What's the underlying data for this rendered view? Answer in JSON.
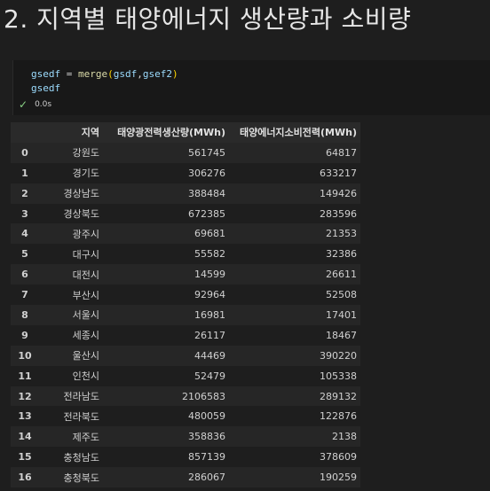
{
  "heading": "2. 지역별 태양에너지 생산량과 소비량",
  "cell": {
    "code": {
      "line1": {
        "var": "gsedf",
        "op": " = ",
        "fn": "merge",
        "lparen": "(",
        "arg1": "gsdf",
        "comma": ",",
        "arg2": "gsef2",
        "rparen": ")"
      },
      "line2": "gsedf"
    },
    "exec_time": "0.0s"
  },
  "table": {
    "columns": [
      "",
      "지역",
      "태양광전력생산량(MWh)",
      "태양에너지소비전력(MWh)"
    ],
    "rows": [
      [
        "0",
        "강원도",
        "561745",
        "64817"
      ],
      [
        "1",
        "경기도",
        "306276",
        "633217"
      ],
      [
        "2",
        "경상남도",
        "388484",
        "149426"
      ],
      [
        "3",
        "경상북도",
        "672385",
        "283596"
      ],
      [
        "4",
        "광주시",
        "69681",
        "21353"
      ],
      [
        "5",
        "대구시",
        "55582",
        "32386"
      ],
      [
        "6",
        "대전시",
        "14599",
        "26611"
      ],
      [
        "7",
        "부산시",
        "92964",
        "52508"
      ],
      [
        "8",
        "서울시",
        "16981",
        "17401"
      ],
      [
        "9",
        "세종시",
        "26117",
        "18467"
      ],
      [
        "10",
        "울산시",
        "44469",
        "390220"
      ],
      [
        "11",
        "인천시",
        "52479",
        "105338"
      ],
      [
        "12",
        "전라남도",
        "2106583",
        "289132"
      ],
      [
        "13",
        "전라북도",
        "480059",
        "122876"
      ],
      [
        "14",
        "제주도",
        "358836",
        "2138"
      ],
      [
        "15",
        "충청남도",
        "857139",
        "378609"
      ],
      [
        "16",
        "충청북도",
        "286067",
        "190259"
      ]
    ]
  }
}
